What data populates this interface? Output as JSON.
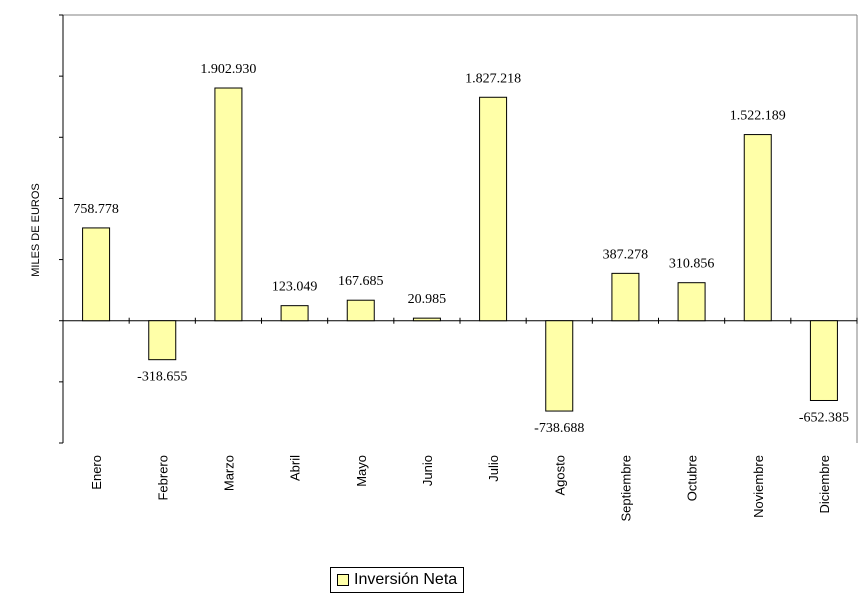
{
  "chart_data": {
    "type": "bar",
    "ylabel": "MILES DE EUROS",
    "categories": [
      "Enero",
      "Febrero",
      "Marzo",
      "Abril",
      "Mayo",
      "Junio",
      "Julio",
      "Agosto",
      "Septiembre",
      "Octubre",
      "Noviembre",
      "Diciembre"
    ],
    "series": [
      {
        "name": "Inversión Neta",
        "values": [
          758778,
          -318655,
          1902930,
          123049,
          167685,
          20985,
          1827218,
          -738688,
          387278,
          310856,
          1522189,
          -652385
        ],
        "labels": [
          "758.778",
          "-318.655",
          "1.902.930",
          "123.049",
          "167.685",
          "20.985",
          "1.827.218",
          "-738.688",
          "387.278",
          "310.856",
          "1.522.189",
          "-652.385"
        ]
      }
    ],
    "ylim": [
      -1000000,
      2500000
    ],
    "grid": false,
    "legend_position": "bottom-center",
    "colors": {
      "bar_fill": "#ffffa8",
      "bar_stroke": "#000000",
      "frame": "#808080"
    }
  }
}
